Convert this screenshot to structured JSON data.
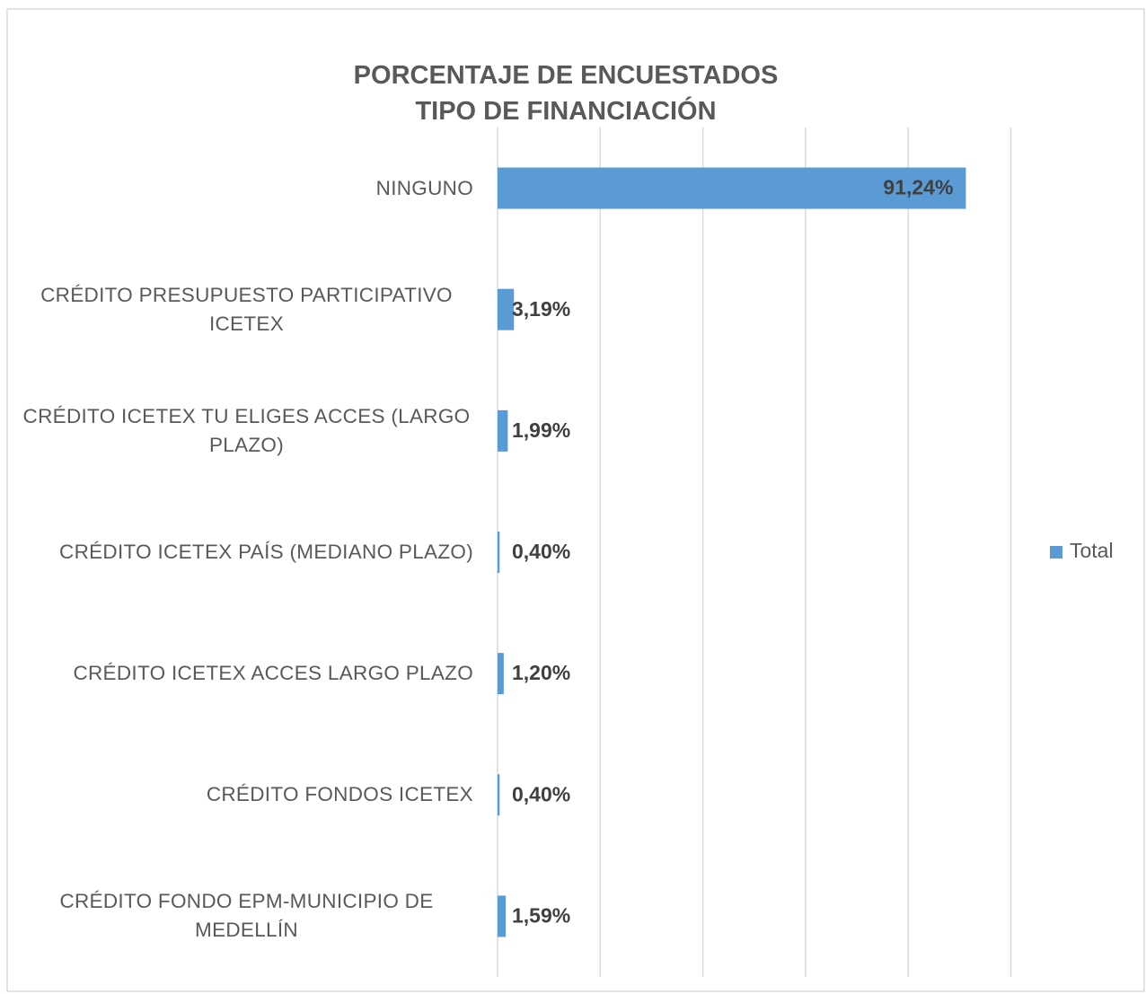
{
  "chart_data": {
    "type": "bar",
    "orientation": "horizontal",
    "title": "PORCENTAJE DE ENCUESTADOS\nTIPO DE FINANCIACIÓN",
    "categories": [
      "NINGUNO",
      "CRÉDITO PRESUPUESTO PARTICIPATIVO ICETEX",
      "CRÉDITO ICETEX TU ELIGES ACCES (LARGO PLAZO)",
      "CRÉDITO ICETEX PAÍS (MEDIANO PLAZO)",
      "CRÉDITO ICETEX ACCES LARGO PLAZO",
      "CRÉDITO FONDOS ICETEX",
      "CRÉDITO FONDO EPM-MUNICIPIO DE MEDELLÍN"
    ],
    "series": [
      {
        "name": "Total",
        "color": "#5b9bd5",
        "values": [
          91.24,
          3.19,
          1.99,
          0.4,
          1.2,
          0.4,
          1.59
        ],
        "value_labels": [
          "91,24%",
          "3,19%",
          "1,99%",
          "0,40%",
          "1,20%",
          "0,40%",
          "1,59%"
        ]
      }
    ],
    "xlim": [
      0,
      100
    ],
    "xticks": [
      0,
      20,
      40,
      60,
      80,
      100
    ],
    "grid": true,
    "legend": "right"
  }
}
